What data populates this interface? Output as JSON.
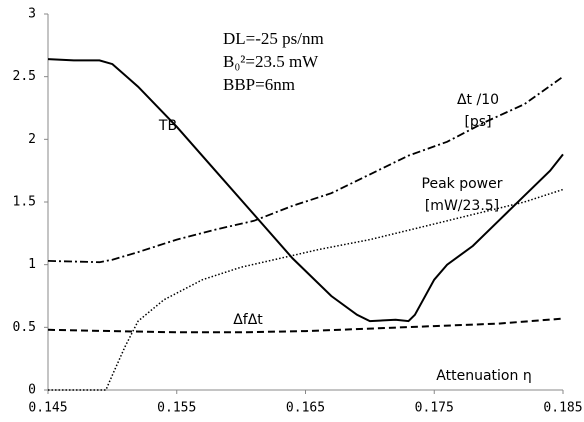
{
  "chart_data": {
    "type": "line",
    "xlim": [
      0.145,
      0.185
    ],
    "xticks": [
      0.145,
      0.155,
      0.165,
      0.175,
      0.185
    ],
    "ylim": [
      0,
      3
    ],
    "yticks": [
      0,
      0.5,
      1,
      1.5,
      2,
      2.5,
      3
    ],
    "x_label": "Attenuation η",
    "annotations": [
      "DL=-25 ps/nm",
      "B₀²=23.5 mW",
      "BBP=6nm"
    ],
    "series": [
      {
        "name": "TB",
        "color": "#000000",
        "style": "solid",
        "x": [
          0.145,
          0.147,
          0.149,
          0.15,
          0.152,
          0.155,
          0.158,
          0.161,
          0.164,
          0.167,
          0.169,
          0.17,
          0.172,
          0.173,
          0.1735,
          0.175,
          0.176,
          0.178,
          0.18,
          0.182,
          0.184,
          0.185
        ],
        "values": [
          2.64,
          2.63,
          2.63,
          2.6,
          2.42,
          2.1,
          1.75,
          1.4,
          1.05,
          0.75,
          0.6,
          0.55,
          0.56,
          0.55,
          0.6,
          0.88,
          1.0,
          1.15,
          1.35,
          1.55,
          1.75,
          1.88
        ]
      },
      {
        "name": "Δt /10 [ps]",
        "color": "#000000",
        "style": "dashdot",
        "x": [
          0.145,
          0.149,
          0.15,
          0.152,
          0.155,
          0.158,
          0.161,
          0.164,
          0.167,
          0.17,
          0.173,
          0.176,
          0.179,
          0.182,
          0.185
        ],
        "values": [
          1.03,
          1.02,
          1.04,
          1.1,
          1.2,
          1.28,
          1.35,
          1.47,
          1.57,
          1.72,
          1.87,
          1.98,
          2.14,
          2.28,
          2.5
        ]
      },
      {
        "name": "Peak power [mW/23.5]",
        "color": "#000000",
        "style": "dotted",
        "x": [
          0.145,
          0.1495,
          0.15,
          0.151,
          0.152,
          0.154,
          0.157,
          0.16,
          0.163,
          0.166,
          0.17,
          0.174,
          0.178,
          0.182,
          0.185
        ],
        "values": [
          0,
          0,
          0.12,
          0.35,
          0.55,
          0.72,
          0.88,
          0.98,
          1.05,
          1.12,
          1.2,
          1.3,
          1.4,
          1.5,
          1.6
        ]
      },
      {
        "name": "ΔfΔt",
        "color": "#000000",
        "style": "dashed",
        "x": [
          0.145,
          0.15,
          0.155,
          0.16,
          0.165,
          0.17,
          0.175,
          0.18,
          0.185
        ],
        "values": [
          0.48,
          0.47,
          0.46,
          0.46,
          0.47,
          0.49,
          0.51,
          0.53,
          0.57
        ]
      }
    ]
  }
}
